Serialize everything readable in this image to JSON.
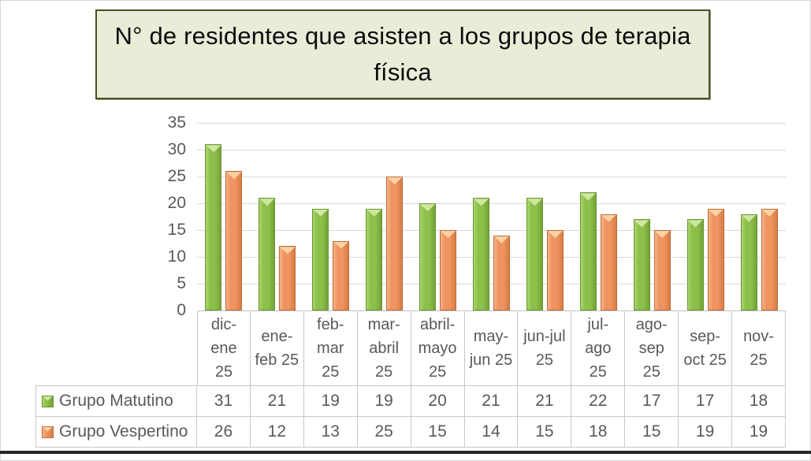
{
  "chart_data": {
    "type": "bar",
    "title": "N° de residentes que asisten a los grupos de terapia física",
    "categories": [
      "dic-ene 25",
      "ene-feb 25",
      "feb-mar 25",
      "mar-abril 25",
      "abril-mayo 25",
      "may-jun 25",
      "jun-jul 25",
      "jul-ago 25",
      "ago-sep 25",
      "sep-oct 25",
      "nov-25"
    ],
    "category_label_lines": [
      [
        "dic-",
        "ene",
        "25"
      ],
      [
        "ene-",
        "feb 25"
      ],
      [
        "feb-",
        "mar",
        "25"
      ],
      [
        "mar-",
        "abril",
        "25"
      ],
      [
        "abril-",
        "mayo",
        "25"
      ],
      [
        "may-",
        "jun 25"
      ],
      [
        "jun-jul",
        "25"
      ],
      [
        "jul-",
        "ago",
        "25"
      ],
      [
        "ago-",
        "sep",
        "25"
      ],
      [
        "sep-",
        "oct 25"
      ],
      [
        "nov-",
        "25"
      ]
    ],
    "series": [
      {
        "name": "Grupo Matutino",
        "color": "#8DC04A",
        "values": [
          31,
          21,
          19,
          19,
          20,
          21,
          21,
          22,
          17,
          17,
          18
        ]
      },
      {
        "name": "Grupo Vespertino",
        "color": "#EF9461",
        "values": [
          26,
          12,
          13,
          25,
          15,
          14,
          15,
          18,
          15,
          19,
          19
        ]
      }
    ],
    "xlabel": "",
    "ylabel": "",
    "ylim": [
      0,
      35
    ],
    "yticks": [
      0,
      5,
      10,
      15,
      20,
      25,
      30,
      35
    ],
    "grid": true,
    "legend_position": "data-table"
  },
  "styles": {
    "title_box_fill": "#E9EDD8",
    "title_box_border": "#4A5028",
    "gridline_color": "#D9D9D9",
    "table_border_color": "#C8C8C8",
    "axis_text_color": "#595959",
    "title_text_color": "#0D0D0D",
    "bottom_line_color": "#262626"
  }
}
